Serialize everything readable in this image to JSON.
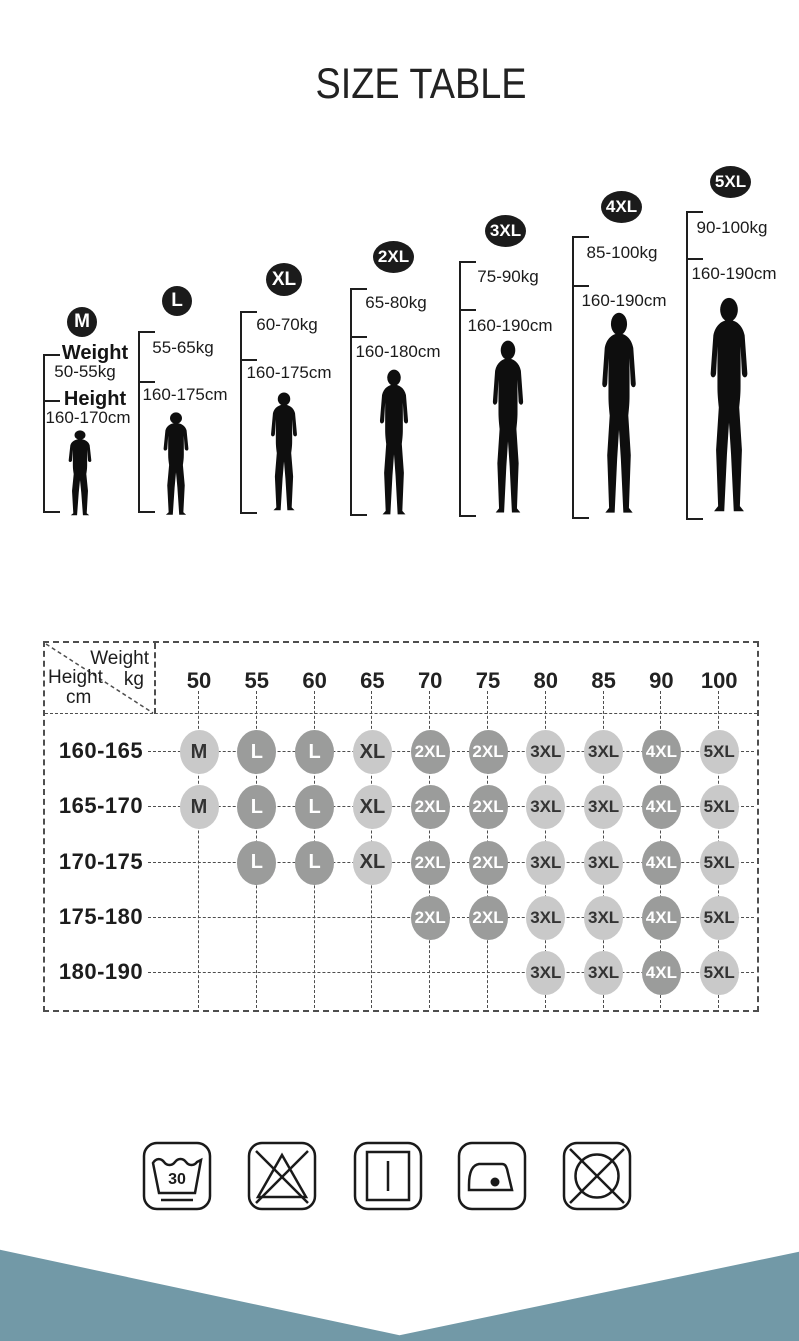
{
  "title": "SIZE TABLE",
  "figures": [
    {
      "size": "M",
      "weight_label": "Weight",
      "weight": "50-55kg",
      "height_label": "Height",
      "height": "160-170cm"
    },
    {
      "size": "L",
      "weight": "55-65kg",
      "height": "160-175cm"
    },
    {
      "size": "XL",
      "weight": "60-70kg",
      "height": "160-175cm"
    },
    {
      "size": "2XL",
      "weight": "65-80kg",
      "height": "160-180cm"
    },
    {
      "size": "3XL",
      "weight": "75-90kg",
      "height": "160-190cm"
    },
    {
      "size": "4XL",
      "weight": "85-100kg",
      "height": "160-190cm"
    },
    {
      "size": "5XL",
      "weight": "90-100kg",
      "height": "160-190cm"
    }
  ],
  "table": {
    "corner": {
      "weight_label": "Weight",
      "weight_unit": "kg",
      "height_label": "Height",
      "height_unit": "cm"
    },
    "columns": [
      "50",
      "55",
      "60",
      "65",
      "70",
      "75",
      "80",
      "85",
      "90",
      "100"
    ],
    "rows": [
      {
        "label": "160-165",
        "cells": [
          "M",
          "L",
          "L",
          "XL",
          "2XL",
          "2XL",
          "3XL",
          "3XL",
          "4XL",
          "5XL"
        ]
      },
      {
        "label": "165-170",
        "cells": [
          "M",
          "L",
          "L",
          "XL",
          "2XL",
          "2XL",
          "3XL",
          "3XL",
          "4XL",
          "5XL"
        ]
      },
      {
        "label": "170-175",
        "cells": [
          null,
          "L",
          "L",
          "XL",
          "2XL",
          "2XL",
          "3XL",
          "3XL",
          "4XL",
          "5XL"
        ]
      },
      {
        "label": "175-180",
        "cells": [
          null,
          null,
          null,
          null,
          "2XL",
          "2XL",
          "3XL",
          "3XL",
          "4XL",
          "5XL"
        ]
      },
      {
        "label": "180-190",
        "cells": [
          null,
          null,
          null,
          null,
          null,
          null,
          "3XL",
          "3XL",
          "4XL",
          "5XL"
        ]
      }
    ],
    "dark_sizes": [
      "L",
      "2XL",
      "4XL"
    ]
  },
  "care": {
    "wash_temp": "30"
  },
  "care_icons": [
    {
      "name": "wash-30-icon"
    },
    {
      "name": "do-not-bleach-icon"
    },
    {
      "name": "drip-dry-icon"
    },
    {
      "name": "iron-low-heat-icon"
    },
    {
      "name": "do-not-tumble-dry-icon"
    }
  ],
  "colors": {
    "badge_black": "#1b1b1b",
    "circle_light": "#c9c9c9",
    "circle_dark": "#9b9c9b",
    "band_teal": "#7299a7"
  }
}
